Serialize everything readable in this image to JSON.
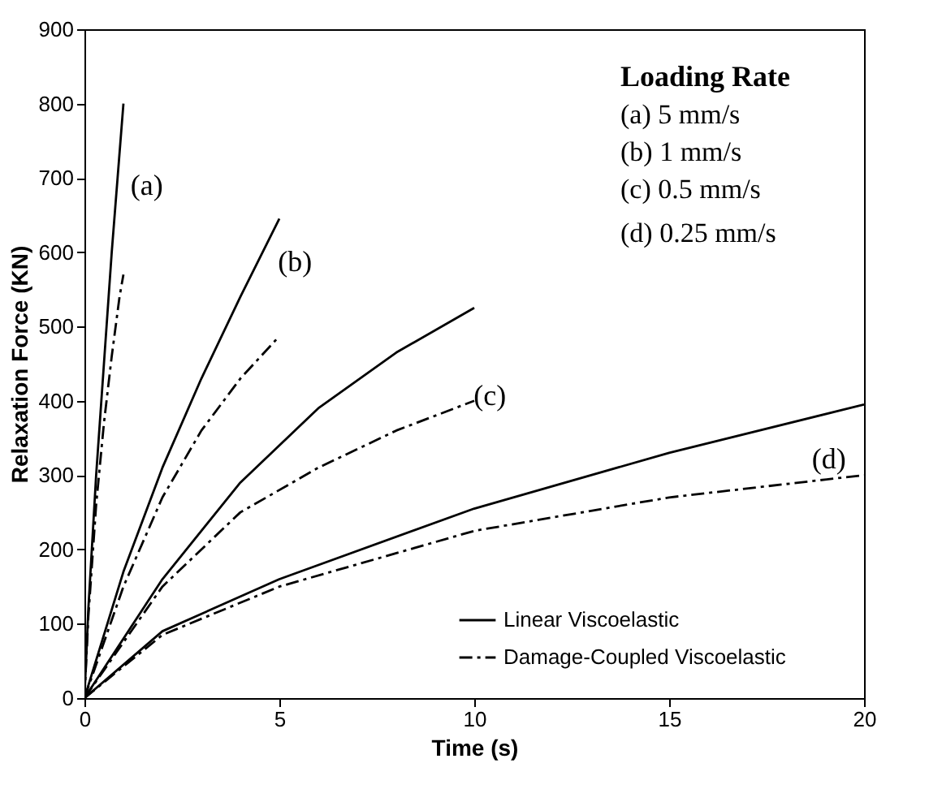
{
  "chart_data": {
    "type": "line",
    "xlabel": "Time (s)",
    "ylabel": "Relaxation Force (KN)",
    "xlim": [
      0,
      20
    ],
    "xticks": [
      0,
      5,
      10,
      15,
      20
    ],
    "ylim": [
      0,
      900
    ],
    "yticks": [
      0,
      100,
      200,
      300,
      400,
      500,
      600,
      700,
      800,
      900
    ],
    "grid": false,
    "legend": "bottom right",
    "marker": "none",
    "series": [
      {
        "name": "Linear Viscoelastic",
        "color": "#000000",
        "line_style": "solid",
        "x": [
          0,
          0.1,
          0.3,
          0.5,
          0.7,
          0.85,
          1
        ],
        "values": [
          0,
          120,
          300,
          450,
          600,
          700,
          800
        ]
      },
      {
        "name": "Damage-Coupled Viscoelastic",
        "color": "#000000",
        "line_style": "dashed",
        "x": [
          0,
          0.1,
          0.3,
          0.5,
          0.7,
          0.9,
          1
        ],
        "values": [
          0,
          110,
          260,
          370,
          460,
          540,
          570
        ]
      },
      {
        "color": "#000000",
        "line_style": "solid",
        "x": [
          0,
          1,
          2,
          3,
          4,
          5
        ],
        "values": [
          0,
          170,
          310,
          430,
          540,
          645
        ]
      },
      {
        "color": "#000000",
        "line_style": "dashed",
        "x": [
          0,
          1,
          2,
          3,
          4,
          5
        ],
        "values": [
          0,
          150,
          270,
          360,
          430,
          487
        ]
      },
      {
        "color": "#000000",
        "line_style": "solid",
        "x": [
          0,
          2,
          4,
          6,
          8,
          10
        ],
        "values": [
          0,
          160,
          290,
          390,
          465,
          525
        ]
      },
      {
        "color": "#000000",
        "line_style": "dashed",
        "x": [
          0,
          2,
          4,
          6,
          8,
          10
        ],
        "values": [
          0,
          150,
          250,
          310,
          360,
          400
        ]
      },
      {
        "color": "#000000",
        "line_style": "solid",
        "x": [
          0,
          2,
          5,
          10,
          15,
          20
        ],
        "values": [
          0,
          90,
          160,
          255,
          330,
          395
        ]
      },
      {
        "color": "#000000",
        "line_style": "dashed",
        "x": [
          0,
          2,
          5,
          10,
          15,
          20
        ],
        "values": [
          0,
          85,
          150,
          225,
          270,
          300
        ]
      }
    ],
    "annotations": [
      "(a)",
      "(b)",
      "(c)",
      "(d)",
      "Loading Rate",
      "(a) 5 mm/s",
      "(b) 1 mm/s",
      "(c) 0.5 mm/s",
      "(d) 0.25 mm/s"
    ]
  }
}
